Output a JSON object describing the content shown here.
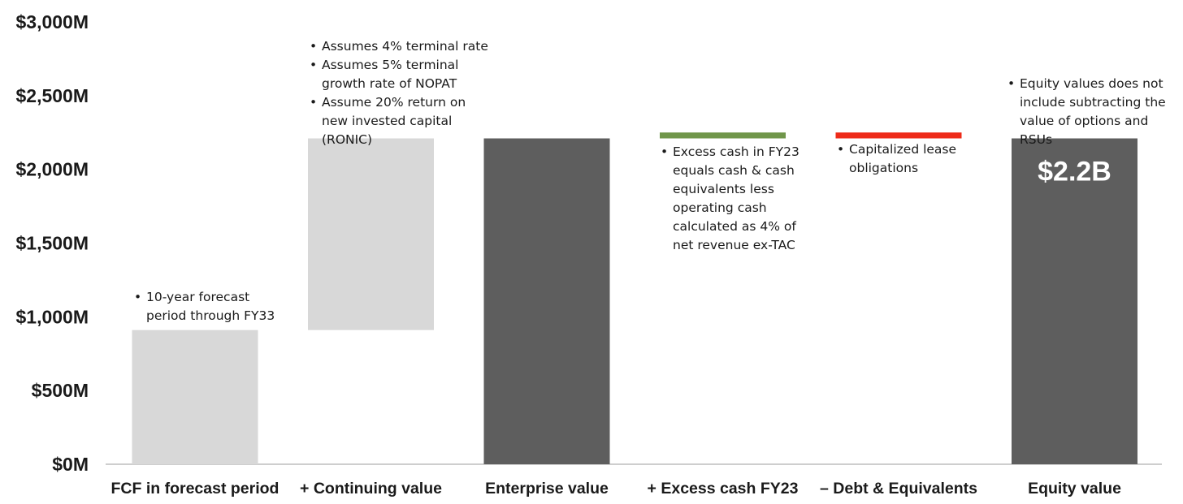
{
  "chart_data": {
    "type": "bar",
    "subtype": "waterfall",
    "title": "",
    "xlabel": "",
    "ylabel": "",
    "ylim": [
      0,
      3000
    ],
    "y_ticks": [
      "$0M",
      "$500M",
      "$1,000M",
      "$1,500M",
      "$2,000M",
      "$2,500M",
      "$3,000M"
    ],
    "categories": [
      "FCF in forecast period",
      "+ Continuing value",
      "Enterprise value",
      "+ Excess cash FY23",
      "– Debt & Equivalents",
      "Equity value"
    ],
    "bars": [
      {
        "label": "FCF in forecast period",
        "kind": "increase",
        "base": 0,
        "value": 910,
        "color": "#d8d8d8"
      },
      {
        "label": "+ Continuing value",
        "kind": "increase",
        "base": 910,
        "value": 1300,
        "color": "#d8d8d8"
      },
      {
        "label": "Enterprise value",
        "kind": "total",
        "base": 0,
        "value": 2210,
        "color": "#5e5e5e"
      },
      {
        "label": "+ Excess cash FY23",
        "kind": "increase",
        "base": 2210,
        "value": 40,
        "color": "#70964a"
      },
      {
        "label": "– Debt & Equivalents",
        "kind": "decrease",
        "base": 2210,
        "value": 40,
        "color": "#ee2b19"
      },
      {
        "label": "Equity value",
        "kind": "total",
        "base": 0,
        "value": 2210,
        "color": "#5e5e5e",
        "data_label": "$2.2B"
      }
    ],
    "grid": false,
    "legend": "none"
  },
  "annotations": {
    "fcf": [
      "10-year forecast period through FY33"
    ],
    "continuing": [
      "Assumes 4% terminal rate",
      "Assumes 5% terminal growth rate of NOPAT",
      "Assume 20% return on new invested capital (RONIC)"
    ],
    "excess_cash": [
      "Excess cash in FY23 equals cash & cash equivalents less operating cash calculated as 4% of net revenue ex-TAC"
    ],
    "debt": [
      "Capitalized lease obligations"
    ],
    "equity": [
      "Equity values does not include subtracting the value of options and RSUs"
    ]
  }
}
